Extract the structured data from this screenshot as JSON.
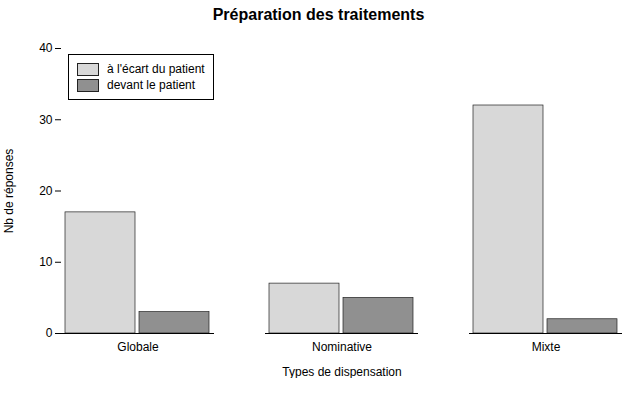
{
  "chart_data": {
    "type": "bar",
    "title": "Préparation des traitements",
    "categories": [
      "Globale",
      "Nominative",
      "Mixte"
    ],
    "series": [
      {
        "name": "à l'écart du patient",
        "color": "#d8d8d8",
        "values": [
          17,
          7,
          32
        ]
      },
      {
        "name": "devant le patient",
        "color": "#909090",
        "values": [
          3,
          5,
          2
        ]
      }
    ],
    "xlabel": "Types de dispensation",
    "ylabel": "Nb de réponses",
    "ylim": [
      0,
      40
    ],
    "yticks": [
      0,
      10,
      20,
      30,
      40
    ],
    "grid": false,
    "legend": "upper left"
  }
}
